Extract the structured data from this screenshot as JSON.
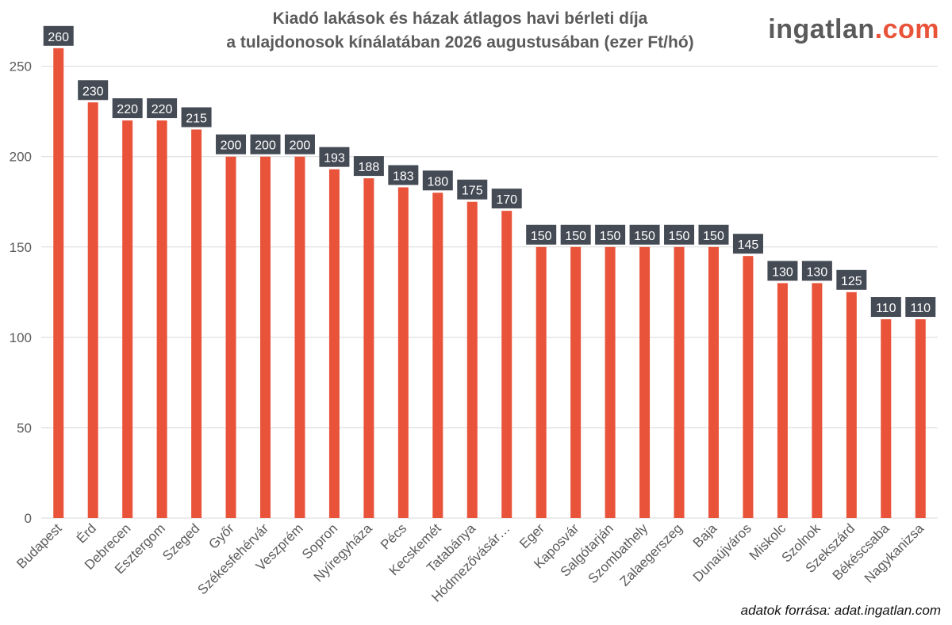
{
  "header": {
    "title_line1": "Kiadó lakások és házak átlagos havi bérleti díja",
    "title_line2": "a tulajdonosok kínálatában 2026 augustusában (ezer Ft/hó)"
  },
  "logo": {
    "part1": "ingatlan",
    "part2": ".com"
  },
  "footer": {
    "source": "adatok forrása: adat.ingatlan.com"
  },
  "colors": {
    "bar": "#e8533a",
    "label_bg": "#454b55",
    "label_text": "#ffffff",
    "grid": "#d9d9d9",
    "axis_text": "#5b5b5b"
  },
  "chart_data": {
    "type": "bar",
    "title": "Kiadó lakások és házak átlagos havi bérleti díja a tulajdonosok kínálatában 2026 augustusában (ezer Ft/hó)",
    "categories": [
      "Budapest",
      "Érd",
      "Debrecen",
      "Esztergom",
      "Szeged",
      "Győr",
      "Székesfehérvár",
      "Veszprém",
      "Sopron",
      "Nyíregyháza",
      "Pécs",
      "Kecskemét",
      "Tatabánya",
      "Hódmezővásár…",
      "Eger",
      "Kaposvár",
      "Salgótarján",
      "Szombathely",
      "Zalaegerszeg",
      "Baja",
      "Dunaújváros",
      "Miskolc",
      "Szolnok",
      "Szekszárd",
      "Békéscsaba",
      "Nagykanizsa"
    ],
    "values": [
      260,
      230,
      220,
      220,
      215,
      200,
      200,
      200,
      193,
      188,
      183,
      180,
      175,
      170,
      150,
      150,
      150,
      150,
      150,
      150,
      145,
      130,
      130,
      125,
      110,
      110
    ],
    "yticks": [
      0,
      50,
      100,
      150,
      200,
      250
    ],
    "ylim": [
      0,
      270
    ],
    "grid": true,
    "data_labels": true
  }
}
